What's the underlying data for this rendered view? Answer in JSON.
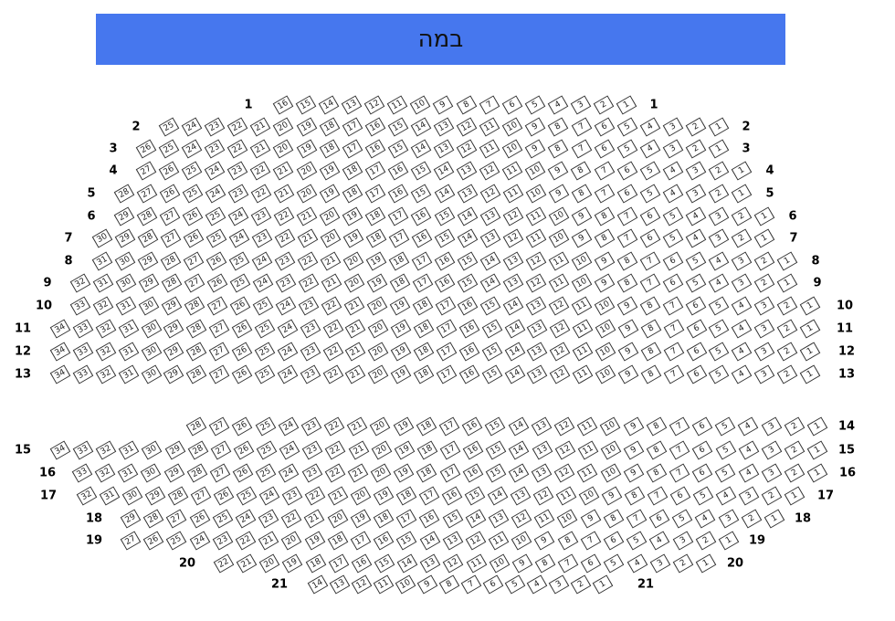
{
  "stage": {
    "label": "במה",
    "color": "#4677EE"
  },
  "rows": [
    {
      "row": "1",
      "seats": 16
    },
    {
      "row": "2",
      "seats": 25
    },
    {
      "row": "3",
      "seats": 26
    },
    {
      "row": "4",
      "seats": 27
    },
    {
      "row": "5",
      "seats": 28
    },
    {
      "row": "6",
      "seats": 29
    },
    {
      "row": "7",
      "seats": 30
    },
    {
      "row": "8",
      "seats": 31
    },
    {
      "row": "9",
      "seats": 32
    },
    {
      "row": "10",
      "seats": 33
    },
    {
      "row": "11",
      "seats": 34
    },
    {
      "row": "12",
      "seats": 34
    },
    {
      "row": "13",
      "seats": 34
    },
    {
      "row": "14",
      "seats": 28,
      "label_left": false
    },
    {
      "row": "15",
      "seats": 34
    },
    {
      "row": "16",
      "seats": 33
    },
    {
      "row": "17",
      "seats": 32
    },
    {
      "row": "18",
      "seats": 29
    },
    {
      "row": "19",
      "seats": 27
    },
    {
      "row": "20",
      "seats": 22
    },
    {
      "row": "21",
      "seats": 14
    }
  ]
}
